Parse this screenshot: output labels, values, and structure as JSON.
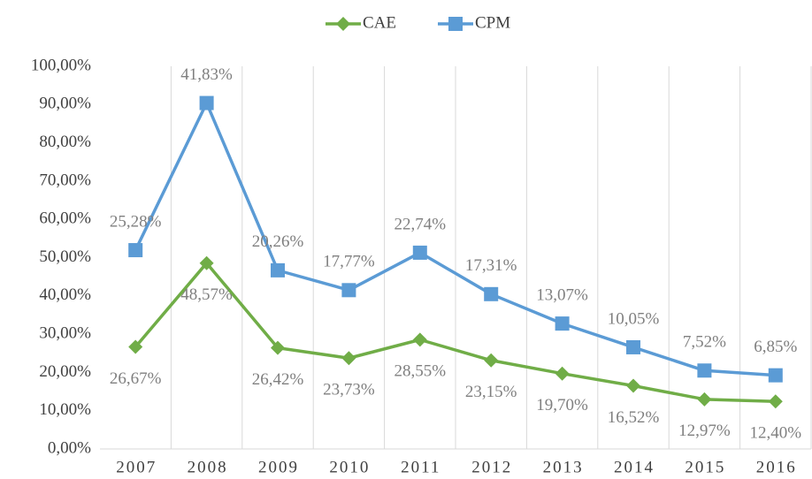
{
  "chart_data": {
    "type": "line",
    "stacked": true,
    "legend": "top",
    "categories": [
      "2007",
      "2008",
      "2009",
      "2010",
      "2011",
      "2012",
      "2013",
      "2014",
      "2015",
      "2016"
    ],
    "series": [
      {
        "name": "CAE",
        "color": "#70ad47",
        "marker": "diamond",
        "values": [
          26.67,
          48.57,
          26.42,
          23.73,
          28.55,
          23.15,
          19.7,
          16.52,
          12.97,
          12.4
        ],
        "value_labels": [
          "26,67%",
          "48,57%",
          "26,42%",
          "23,73%",
          "28,55%",
          "23,15%",
          "19,70%",
          "16,52%",
          "12,97%",
          "12,40%"
        ]
      },
      {
        "name": "CPM",
        "color": "#5b9bd5",
        "marker": "square",
        "values": [
          25.28,
          41.83,
          20.26,
          17.77,
          22.74,
          17.31,
          13.07,
          10.05,
          7.52,
          6.85
        ],
        "value_labels": [
          "25,28%",
          "41,83%",
          "20,26%",
          "17,77%",
          "22,74%",
          "17,31%",
          "13,07%",
          "10,05%",
          "7,52%",
          "6,85%"
        ]
      }
    ],
    "ylim": [
      0,
      100
    ],
    "yticks": [
      {
        "value": 0,
        "label": "0,00%"
      },
      {
        "value": 10,
        "label": "10,00%"
      },
      {
        "value": 20,
        "label": "20,00%"
      },
      {
        "value": 30,
        "label": "30,00%"
      },
      {
        "value": 40,
        "label": "40,00%"
      },
      {
        "value": 50,
        "label": "50,00%"
      },
      {
        "value": 60,
        "label": "60,00%"
      },
      {
        "value": 70,
        "label": "70,00%"
      },
      {
        "value": 80,
        "label": "80,00%"
      },
      {
        "value": 90,
        "label": "90,00%"
      },
      {
        "value": 100,
        "label": "100,00%"
      }
    ],
    "grid": "x"
  }
}
